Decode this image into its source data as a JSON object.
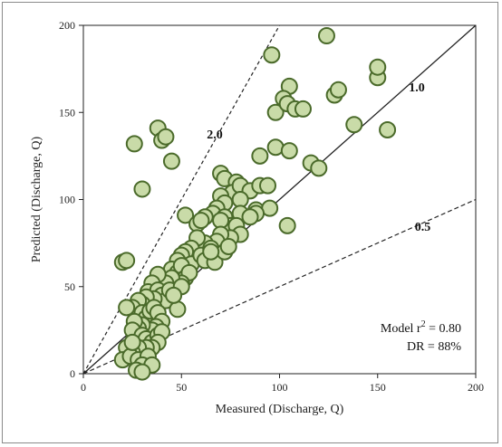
{
  "chart_data": {
    "type": "scatter",
    "xlabel": "Measured (Discharge, Q)",
    "ylabel": "Predicted (Discharge, Q)",
    "xlim": [
      0,
      200
    ],
    "ylim": [
      0,
      200
    ],
    "x_ticks": [
      "0",
      "50",
      "100",
      "150",
      "200"
    ],
    "y_ticks": [
      "0",
      "50",
      "100",
      "150",
      "200"
    ],
    "grid": false,
    "legend": "none",
    "marker_fill": "#c9dba8",
    "marker_edge": "#4a6a2a",
    "reference_lines": [
      {
        "label": "1.0",
        "slope": 1.0,
        "style": "solid"
      },
      {
        "label": "2.0",
        "slope": 2.0,
        "style": "dashed"
      },
      {
        "label": "0.5",
        "slope": 0.5,
        "style": "dashed"
      }
    ],
    "annotations": {
      "model_r2_prefix": "Model r",
      "model_r2_sup": "2",
      "model_r2_value": " = 0.80",
      "dr": "DR = 88%"
    },
    "points": [
      [
        20,
        64
      ],
      [
        22,
        65
      ],
      [
        26,
        132
      ],
      [
        30,
        106
      ],
      [
        38,
        141
      ],
      [
        40,
        134
      ],
      [
        42,
        136
      ],
      [
        45,
        122
      ],
      [
        96,
        183
      ],
      [
        124,
        194
      ],
      [
        105,
        165
      ],
      [
        98,
        150
      ],
      [
        102,
        158
      ],
      [
        104,
        155
      ],
      [
        108,
        152
      ],
      [
        112,
        152
      ],
      [
        128,
        160
      ],
      [
        130,
        163
      ],
      [
        150,
        170
      ],
      [
        150,
        176
      ],
      [
        138,
        143
      ],
      [
        155,
        140
      ],
      [
        98,
        130
      ],
      [
        105,
        128
      ],
      [
        116,
        121
      ],
      [
        120,
        118
      ],
      [
        90,
        125
      ],
      [
        70,
        115
      ],
      [
        72,
        112
      ],
      [
        78,
        110
      ],
      [
        76,
        104
      ],
      [
        80,
        108
      ],
      [
        85,
        105
      ],
      [
        80,
        100
      ],
      [
        70,
        102
      ],
      [
        72,
        98
      ],
      [
        68,
        95
      ],
      [
        66,
        92
      ],
      [
        72,
        90
      ],
      [
        62,
        90
      ],
      [
        52,
        91
      ],
      [
        58,
        86
      ],
      [
        60,
        88
      ],
      [
        75,
        85
      ],
      [
        70,
        88
      ],
      [
        80,
        92
      ],
      [
        88,
        94
      ],
      [
        95,
        95
      ],
      [
        104,
        85
      ],
      [
        90,
        108
      ],
      [
        94,
        108
      ],
      [
        88,
        92
      ],
      [
        85,
        90
      ],
      [
        78,
        85
      ],
      [
        80,
        80
      ],
      [
        75,
        78
      ],
      [
        70,
        80
      ],
      [
        68,
        76
      ],
      [
        62,
        75
      ],
      [
        58,
        78
      ],
      [
        55,
        72
      ],
      [
        52,
        70
      ],
      [
        50,
        68
      ],
      [
        48,
        65
      ],
      [
        55,
        63
      ],
      [
        60,
        68
      ],
      [
        65,
        72
      ],
      [
        62,
        65
      ],
      [
        67,
        64
      ],
      [
        72,
        70
      ],
      [
        74,
        73
      ],
      [
        65,
        70
      ],
      [
        45,
        60
      ],
      [
        48,
        58
      ],
      [
        50,
        62
      ],
      [
        52,
        55
      ],
      [
        54,
        58
      ],
      [
        50,
        52
      ],
      [
        45,
        55
      ],
      [
        42,
        52
      ],
      [
        38,
        57
      ],
      [
        35,
        52
      ],
      [
        33,
        47
      ],
      [
        38,
        48
      ],
      [
        40,
        45
      ],
      [
        42,
        42
      ],
      [
        44,
        48
      ],
      [
        36,
        43
      ],
      [
        32,
        44
      ],
      [
        30,
        40
      ],
      [
        28,
        42
      ],
      [
        25,
        38
      ],
      [
        22,
        38
      ],
      [
        30,
        35
      ],
      [
        32,
        32
      ],
      [
        34,
        36
      ],
      [
        36,
        38
      ],
      [
        38,
        35
      ],
      [
        40,
        30
      ],
      [
        37,
        27
      ],
      [
        35,
        25
      ],
      [
        30,
        28
      ],
      [
        28,
        26
      ],
      [
        26,
        30
      ],
      [
        25,
        25
      ],
      [
        30,
        22
      ],
      [
        32,
        20
      ],
      [
        35,
        18
      ],
      [
        38,
        22
      ],
      [
        40,
        24
      ],
      [
        38,
        18
      ],
      [
        35,
        15
      ],
      [
        32,
        15
      ],
      [
        28,
        15
      ],
      [
        25,
        12
      ],
      [
        22,
        15
      ],
      [
        20,
        8
      ],
      [
        24,
        10
      ],
      [
        28,
        8
      ],
      [
        33,
        10
      ],
      [
        30,
        5
      ],
      [
        35,
        5
      ],
      [
        27,
        2
      ],
      [
        30,
        1
      ],
      [
        25,
        18
      ],
      [
        48,
        37
      ],
      [
        50,
        50
      ],
      [
        46,
        45
      ]
    ]
  }
}
